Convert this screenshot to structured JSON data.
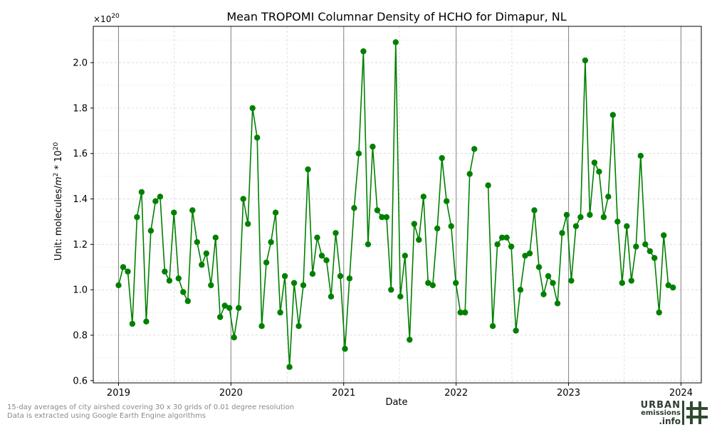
{
  "chart_data": {
    "type": "line",
    "title": "Mean TROPOMI Columnar Density of HCHO for Dimapur, NL",
    "xlabel": "Date",
    "ylabel_prefix": "Unit: molecules/",
    "ylabel_unit_m": "m",
    "ylabel_exp2": "2",
    "ylabel_mid": " * 10",
    "ylabel_exp20": "20",
    "offset_base": "×10",
    "offset_exp": "20",
    "x_ticks": [
      "2019",
      "2020",
      "2021",
      "2022",
      "2023",
      "2024"
    ],
    "y_ticks": [
      "0.6",
      "0.8",
      "1.0",
      "1.2",
      "1.4",
      "1.6",
      "1.8",
      "2.0"
    ],
    "xlim": [
      "2018-10-11",
      "2024-03-07"
    ],
    "ylim": [
      0.59,
      2.16
    ],
    "grid": true,
    "line_color": "#008000",
    "marker_color": "#008000",
    "series": [
      {
        "x": [
          "2019-01-01",
          "2019-01-16",
          "2019-01-31",
          "2019-02-15",
          "2019-03-02",
          "2019-03-17",
          "2019-04-01",
          "2019-04-16",
          "2019-05-01",
          "2019-05-16",
          "2019-05-31",
          "2019-06-15",
          "2019-06-30",
          "2019-07-15",
          "2019-07-30",
          "2019-08-14",
          "2019-08-29",
          "2019-09-13",
          "2019-09-28",
          "2019-10-13",
          "2019-10-28",
          "2019-11-12",
          "2019-11-27",
          "2019-12-12",
          "2019-12-27",
          "2020-01-11",
          "2020-01-26",
          "2020-02-10",
          "2020-02-25",
          "2020-03-11",
          "2020-03-26",
          "2020-04-10",
          "2020-04-25",
          "2020-05-10",
          "2020-05-25",
          "2020-06-09",
          "2020-06-24",
          "2020-07-09",
          "2020-07-24",
          "2020-08-08",
          "2020-08-23",
          "2020-09-07",
          "2020-09-22",
          "2020-10-07",
          "2020-10-22",
          "2020-11-06",
          "2020-11-21",
          "2020-12-06",
          "2020-12-21",
          "2021-01-05",
          "2021-01-20",
          "2021-02-04",
          "2021-02-19",
          "2021-03-06",
          "2021-03-21",
          "2021-04-05",
          "2021-04-20",
          "2021-05-05",
          "2021-05-20",
          "2021-06-04",
          "2021-06-19",
          "2021-07-04",
          "2021-07-19",
          "2021-08-03",
          "2021-08-18",
          "2021-09-02",
          "2021-09-17",
          "2021-10-02",
          "2021-10-17",
          "2021-11-01",
          "2021-11-16",
          "2021-12-01",
          "2021-12-16",
          "2021-12-31",
          "2022-01-15",
          "2022-01-30",
          "2022-02-14",
          "2022-03-01",
          "2022-04-15",
          "2022-04-30",
          "2022-05-15",
          "2022-05-30",
          "2022-06-14",
          "2022-06-29",
          "2022-07-14",
          "2022-07-29",
          "2022-08-13",
          "2022-08-28",
          "2022-09-12",
          "2022-09-27",
          "2022-10-12",
          "2022-10-27",
          "2022-11-11",
          "2022-11-26",
          "2022-12-11",
          "2022-12-26",
          "2023-01-10",
          "2023-01-25",
          "2023-02-09",
          "2023-02-24",
          "2023-03-11",
          "2023-03-26",
          "2023-04-10",
          "2023-04-25",
          "2023-05-10",
          "2023-05-25",
          "2023-06-09",
          "2023-06-24",
          "2023-07-09",
          "2023-07-24",
          "2023-08-08",
          "2023-08-23",
          "2023-09-07",
          "2023-09-22",
          "2023-10-07",
          "2023-10-22",
          "2023-11-06",
          "2023-11-21",
          "2023-12-06"
        ],
        "y": [
          1.02,
          1.1,
          1.08,
          0.85,
          1.32,
          1.43,
          0.86,
          1.26,
          1.39,
          1.41,
          1.08,
          1.04,
          1.34,
          1.05,
          0.99,
          0.95,
          1.35,
          1.21,
          1.11,
          1.16,
          1.02,
          1.23,
          0.88,
          0.93,
          0.92,
          0.79,
          0.92,
          1.4,
          1.29,
          1.8,
          1.67,
          0.84,
          1.12,
          1.21,
          1.34,
          0.9,
          1.06,
          0.66,
          1.03,
          0.84,
          1.02,
          1.53,
          1.07,
          1.23,
          1.15,
          1.13,
          0.97,
          1.25,
          1.06,
          0.74,
          1.05,
          1.36,
          1.6,
          2.05,
          1.2,
          1.63,
          1.35,
          1.32,
          1.32,
          1.0,
          2.09,
          0.97,
          1.15,
          0.78,
          1.29,
          1.22,
          1.41,
          1.03,
          1.02,
          1.27,
          1.58,
          1.39,
          1.28,
          1.03,
          0.9,
          0.9,
          1.51,
          1.62,
          1.46,
          0.84,
          1.2,
          1.23,
          1.23,
          1.19,
          0.82,
          1.0,
          1.15,
          1.16,
          1.35,
          1.1,
          0.98,
          1.06,
          1.03,
          0.94,
          1.25,
          1.33,
          1.04,
          1.28,
          1.32,
          2.01,
          1.33,
          1.56,
          1.52,
          1.32,
          1.41,
          1.77,
          1.3,
          1.03,
          1.28,
          1.04,
          1.19,
          1.59,
          1.2,
          1.17,
          1.14,
          0.9,
          1.24,
          1.02,
          1.01
        ],
        "segments_start_index": [
          0,
          78
        ]
      }
    ]
  },
  "footnote": {
    "line1": "15-day averages of city airshed covering 30 x 30 grids of 0.01 degree resolution",
    "line2": "Data is extracted using Google Earth Engine algorithms"
  },
  "logo": {
    "word1": "URBAN",
    "word2": "emissions",
    "word3": ".info"
  }
}
